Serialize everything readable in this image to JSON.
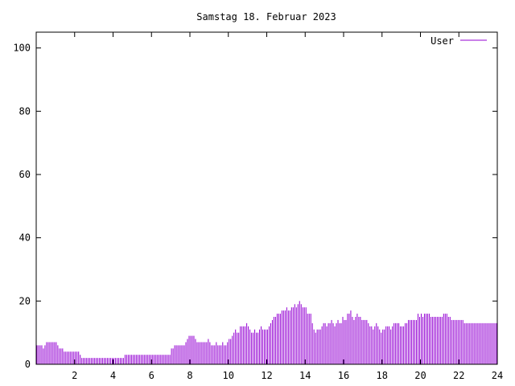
{
  "chart_data": {
    "type": "bar",
    "title": "Samstag 18. Februar 2023",
    "xlabel": "",
    "ylabel": "",
    "xlim": [
      0,
      24
    ],
    "ylim": [
      0,
      105
    ],
    "xticks": [
      2,
      4,
      6,
      8,
      10,
      12,
      14,
      16,
      18,
      20,
      22,
      24
    ],
    "yticks": [
      0,
      20,
      40,
      60,
      80,
      100
    ],
    "grid": false,
    "legend_position": "top-right",
    "series": [
      {
        "name": "User",
        "color": "#9400d3",
        "x_step_hours": 0.08333,
        "values": [
          6,
          6,
          6,
          6,
          5,
          6,
          7,
          7,
          7,
          7,
          7,
          7,
          7,
          6,
          5,
          5,
          5,
          4,
          4,
          4,
          4,
          4,
          4,
          4,
          4,
          4,
          4,
          3,
          2,
          2,
          2,
          2,
          2,
          2,
          2,
          2,
          2,
          2,
          2,
          2,
          2,
          2,
          2,
          2,
          2,
          2,
          2,
          2,
          2,
          2,
          2,
          2,
          2,
          2,
          2,
          3,
          3,
          3,
          3,
          3,
          3,
          3,
          3,
          3,
          3,
          3,
          3,
          3,
          3,
          3,
          3,
          3,
          3,
          3,
          3,
          3,
          3,
          3,
          3,
          3,
          3,
          3,
          3,
          3,
          5,
          5,
          6,
          6,
          6,
          6,
          6,
          6,
          6,
          7,
          8,
          9,
          9,
          9,
          9,
          8,
          7,
          7,
          7,
          7,
          7,
          7,
          7,
          8,
          7,
          6,
          6,
          6,
          7,
          6,
          6,
          6,
          7,
          6,
          6,
          7,
          8,
          8,
          9,
          10,
          11,
          10,
          10,
          12,
          12,
          12,
          12,
          13,
          12,
          11,
          10,
          10,
          11,
          10,
          10,
          11,
          12,
          11,
          11,
          11,
          11,
          12,
          13,
          14,
          15,
          15,
          16,
          16,
          16,
          17,
          17,
          17,
          18,
          17,
          17,
          18,
          18,
          19,
          18,
          19,
          20,
          19,
          18,
          18,
          18,
          16,
          16,
          16,
          13,
          11,
          10,
          11,
          11,
          11,
          12,
          13,
          13,
          12,
          13,
          13,
          14,
          13,
          12,
          13,
          14,
          13,
          13,
          15,
          14,
          14,
          16,
          16,
          17,
          15,
          14,
          15,
          16,
          15,
          15,
          14,
          14,
          14,
          14,
          13,
          12,
          12,
          11,
          12,
          13,
          12,
          11,
          10,
          11,
          11,
          12,
          12,
          12,
          11,
          12,
          13,
          13,
          13,
          13,
          12,
          12,
          12,
          13,
          13,
          14,
          14,
          14,
          14,
          14,
          14,
          16,
          15,
          16,
          15,
          16,
          16,
          16,
          16,
          15,
          15,
          15,
          15,
          15,
          15,
          15,
          15,
          16,
          16,
          16,
          15,
          15,
          14,
          14,
          14,
          14,
          14,
          14,
          14,
          14,
          13,
          13,
          13,
          13,
          13,
          13,
          13,
          13,
          13,
          13,
          13,
          13,
          13,
          13,
          13,
          13,
          13,
          13,
          13,
          13,
          13
        ]
      }
    ]
  }
}
